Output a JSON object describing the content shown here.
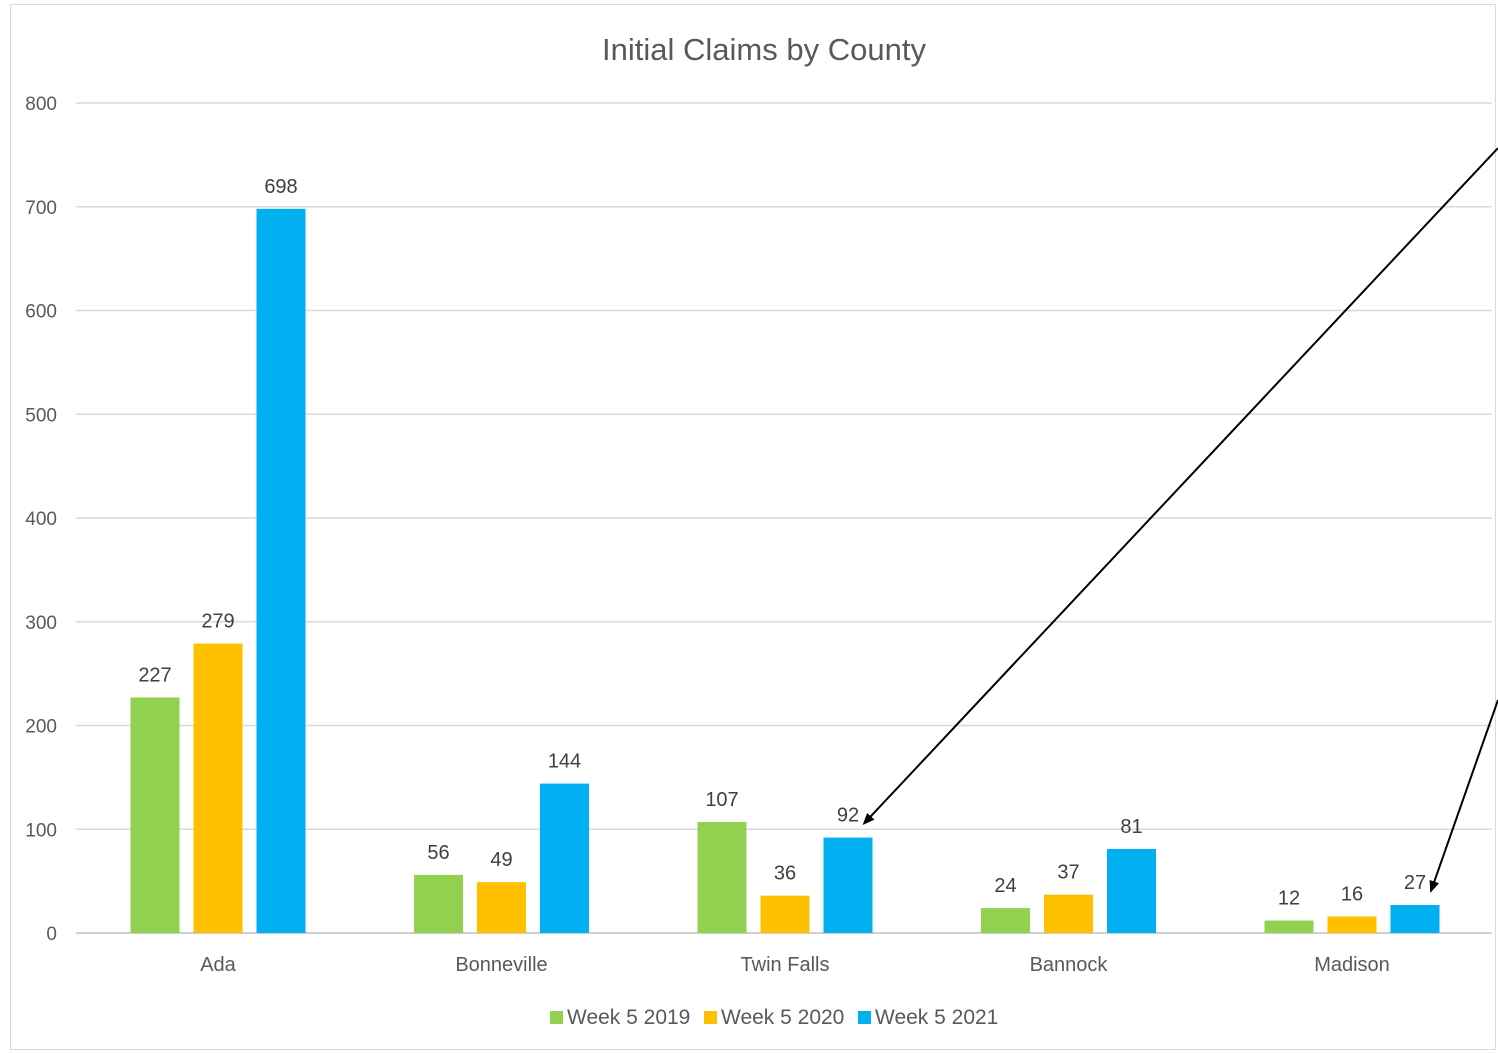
{
  "chart_data": {
    "type": "bar",
    "title": "Initial Claims by County",
    "xlabel": "",
    "ylabel": "",
    "categories": [
      "Ada",
      "Bonneville",
      "Twin Falls",
      "Bannock",
      "Madison"
    ],
    "series": [
      {
        "name": "Week 5 2019",
        "color": "#92d050",
        "values": [
          227,
          56,
          107,
          24,
          12
        ]
      },
      {
        "name": "Week 5 2020",
        "color": "#ffc000",
        "values": [
          279,
          49,
          36,
          37,
          16
        ]
      },
      {
        "name": "Week 5 2021",
        "color": "#00b0f0",
        "values": [
          698,
          144,
          92,
          81,
          27
        ]
      }
    ],
    "ylim": [
      0,
      800
    ],
    "yticks": [
      0,
      100,
      200,
      300,
      400,
      500,
      600,
      700,
      800
    ],
    "grid": true,
    "legend_position": "bottom",
    "annotations": [
      {
        "type": "arrow",
        "points_to": {
          "category": "Twin Falls",
          "series": "Week 5 2021"
        }
      },
      {
        "type": "arrow",
        "points_to": {
          "category": "Madison",
          "series": "Week 5 2021"
        }
      }
    ]
  }
}
